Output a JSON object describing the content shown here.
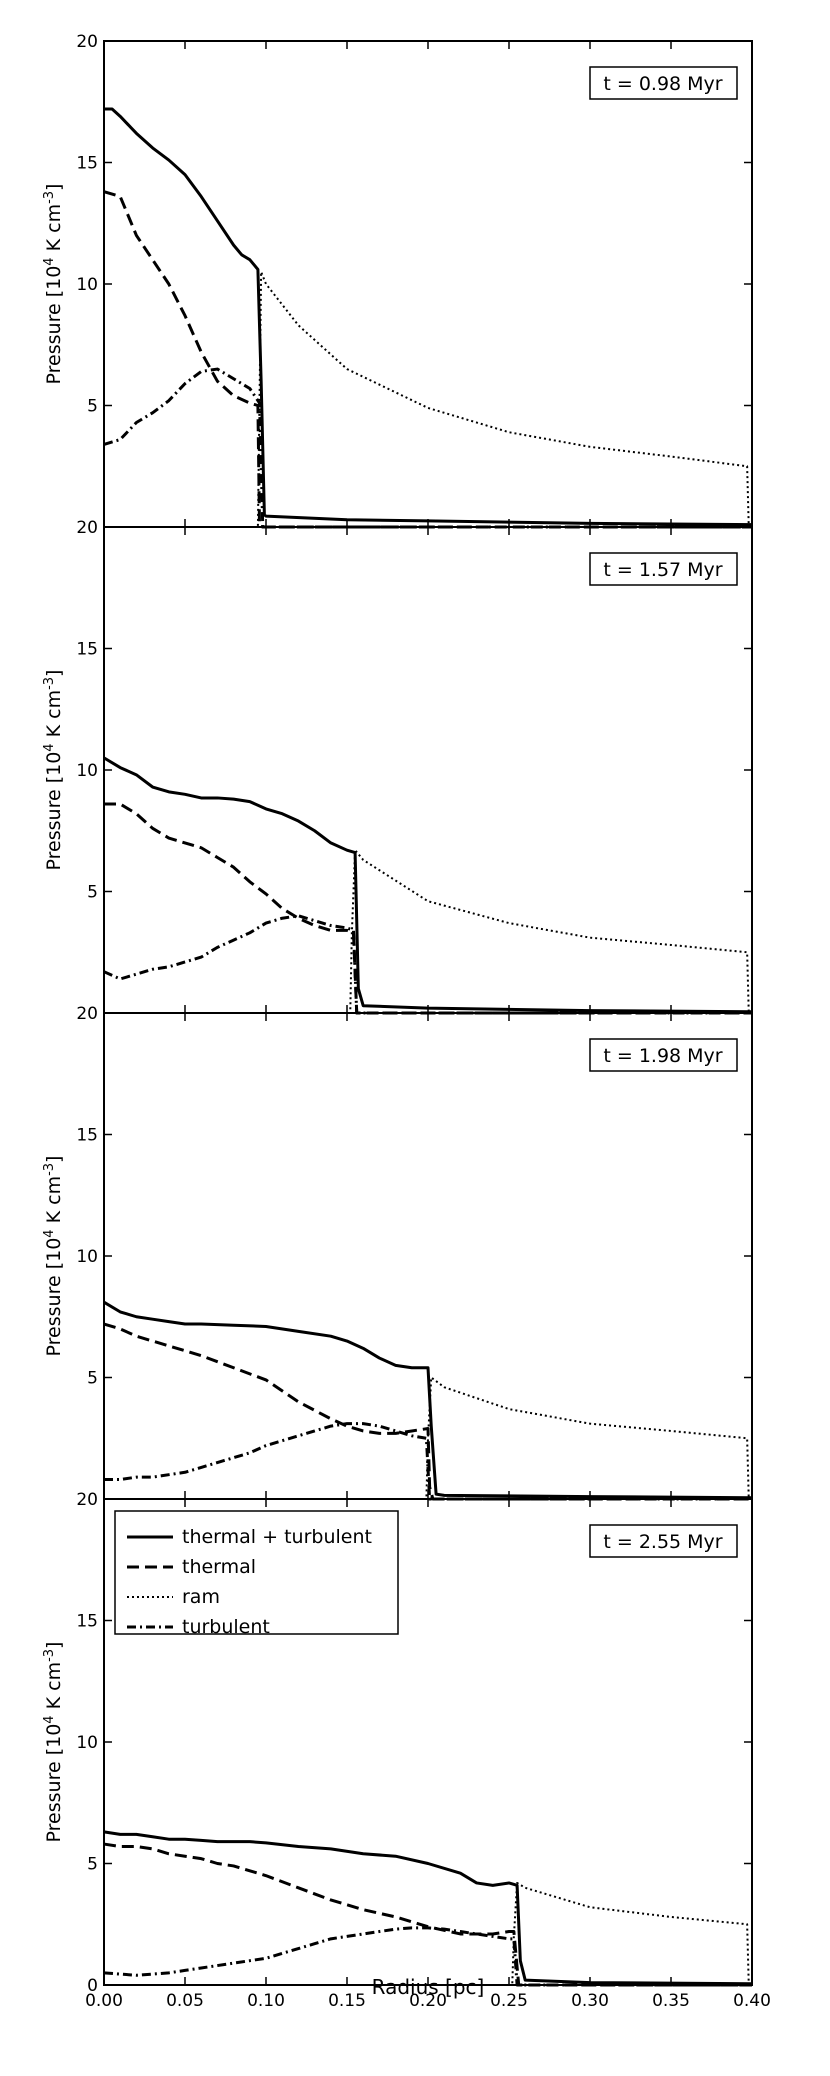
{
  "figure": {
    "xlabel": "Radius [pc]",
    "ylabel_prefix": "Pressure [10",
    "ylabel_exp1": "4",
    "ylabel_mid": " K cm",
    "ylabel_exp2": "-3",
    "ylabel_suffix": "]",
    "legend": [
      {
        "label": "thermal + turbulent",
        "style": "solid"
      },
      {
        "label": "thermal",
        "style": "dashed"
      },
      {
        "label": "ram",
        "style": "dotted"
      },
      {
        "label": "turbulent",
        "style": "dashdot"
      }
    ],
    "legend_placement": "upper-left of bottom panel",
    "line_color": "#000000"
  },
  "chart_data": [
    {
      "type": "line",
      "time_label": "t = 0.98 Myr",
      "xlim": [
        0,
        0.4
      ],
      "ylim": [
        0,
        20
      ],
      "xticks": [
        "0.00",
        "0.05",
        "0.10",
        "0.15",
        "0.20",
        "0.25",
        "0.30",
        "0.35",
        "0.40"
      ],
      "yticks": [
        "",
        "5",
        "10",
        "15",
        "20"
      ],
      "series": [
        {
          "name": "thermal + turbulent",
          "style": "solid",
          "x": [
            0,
            0.005,
            0.01,
            0.02,
            0.03,
            0.04,
            0.05,
            0.06,
            0.07,
            0.08,
            0.085,
            0.09,
            0.095,
            0.097,
            0.099,
            0.1,
            0.15,
            0.2,
            0.3,
            0.4
          ],
          "y": [
            17.2,
            17.2,
            16.9,
            16.2,
            15.6,
            15.1,
            14.5,
            13.6,
            12.6,
            11.6,
            11.2,
            11.0,
            10.6,
            6.0,
            0.5,
            0.45,
            0.3,
            0.25,
            0.15,
            0.1
          ]
        },
        {
          "name": "thermal",
          "style": "dashed",
          "x": [
            0,
            0.01,
            0.02,
            0.03,
            0.04,
            0.05,
            0.06,
            0.07,
            0.08,
            0.09,
            0.095,
            0.096,
            0.098,
            0.4
          ],
          "y": [
            13.8,
            13.6,
            12.0,
            11.0,
            10.0,
            8.7,
            7.2,
            6.0,
            5.4,
            5.1,
            5.0,
            0.05,
            0.0,
            0.0
          ]
        },
        {
          "name": "ram",
          "style": "dotted",
          "x": [
            0,
            0.095,
            0.096,
            0.097,
            0.1,
            0.12,
            0.15,
            0.2,
            0.25,
            0.3,
            0.35,
            0.397,
            0.398,
            0.4
          ],
          "y": [
            0,
            0,
            5.2,
            10.5,
            10.0,
            8.3,
            6.5,
            4.9,
            3.9,
            3.3,
            2.9,
            2.5,
            0,
            0
          ]
        },
        {
          "name": "turbulent",
          "style": "dashdot",
          "x": [
            0,
            0.01,
            0.02,
            0.03,
            0.04,
            0.05,
            0.06,
            0.07,
            0.08,
            0.09,
            0.096,
            0.098,
            0.4
          ],
          "y": [
            3.4,
            3.6,
            4.3,
            4.7,
            5.2,
            5.9,
            6.4,
            6.5,
            6.1,
            5.7,
            5.1,
            0.0,
            0.0
          ]
        }
      ]
    },
    {
      "type": "line",
      "time_label": "t = 1.57 Myr",
      "xlim": [
        0,
        0.4
      ],
      "ylim": [
        0,
        20
      ],
      "xticks": [
        "0.00",
        "0.05",
        "0.10",
        "0.15",
        "0.20",
        "0.25",
        "0.30",
        "0.35",
        "0.40"
      ],
      "yticks": [
        "",
        "5",
        "10",
        "15",
        "20"
      ],
      "series": [
        {
          "name": "thermal + turbulent",
          "style": "solid",
          "x": [
            0,
            0.01,
            0.02,
            0.03,
            0.04,
            0.05,
            0.06,
            0.07,
            0.08,
            0.09,
            0.1,
            0.11,
            0.12,
            0.13,
            0.14,
            0.15,
            0.155,
            0.157,
            0.16,
            0.2,
            0.3,
            0.4
          ],
          "y": [
            10.5,
            10.1,
            9.8,
            9.3,
            9.1,
            9.0,
            8.85,
            8.85,
            8.8,
            8.7,
            8.4,
            8.2,
            7.9,
            7.5,
            7.0,
            6.7,
            6.6,
            1.0,
            0.3,
            0.2,
            0.1,
            0.05
          ]
        },
        {
          "name": "thermal",
          "style": "dashed",
          "x": [
            0,
            0.01,
            0.02,
            0.03,
            0.04,
            0.05,
            0.06,
            0.07,
            0.08,
            0.09,
            0.1,
            0.11,
            0.12,
            0.13,
            0.14,
            0.15,
            0.154,
            0.156,
            0.4
          ],
          "y": [
            8.6,
            8.6,
            8.2,
            7.6,
            7.2,
            7.0,
            6.8,
            6.4,
            6.0,
            5.4,
            4.9,
            4.3,
            3.9,
            3.6,
            3.4,
            3.4,
            3.3,
            0.0,
            0.0
          ]
        },
        {
          "name": "ram",
          "style": "dotted",
          "x": [
            0,
            0.152,
            0.153,
            0.155,
            0.16,
            0.2,
            0.25,
            0.3,
            0.35,
            0.397,
            0.398,
            0.4
          ],
          "y": [
            0,
            0,
            3.3,
            6.7,
            6.3,
            4.6,
            3.7,
            3.1,
            2.8,
            2.5,
            0,
            0
          ]
        },
        {
          "name": "turbulent",
          "style": "dashdot",
          "x": [
            0,
            0.01,
            0.02,
            0.03,
            0.04,
            0.05,
            0.06,
            0.07,
            0.08,
            0.09,
            0.1,
            0.11,
            0.12,
            0.13,
            0.14,
            0.15,
            0.154,
            0.156,
            0.4
          ],
          "y": [
            1.7,
            1.4,
            1.6,
            1.8,
            1.9,
            2.1,
            2.3,
            2.7,
            3.0,
            3.3,
            3.7,
            3.9,
            4.0,
            3.8,
            3.6,
            3.5,
            3.4,
            0.0,
            0.0
          ]
        }
      ]
    },
    {
      "type": "line",
      "time_label": "t = 1.98 Myr",
      "xlim": [
        0,
        0.4
      ],
      "ylim": [
        0,
        20
      ],
      "xticks": [
        "0.00",
        "0.05",
        "0.10",
        "0.15",
        "0.20",
        "0.25",
        "0.30",
        "0.35",
        "0.40"
      ],
      "yticks": [
        "",
        "5",
        "10",
        "15",
        "20"
      ],
      "series": [
        {
          "name": "thermal + turbulent",
          "style": "solid",
          "x": [
            0,
            0.01,
            0.02,
            0.03,
            0.04,
            0.05,
            0.06,
            0.08,
            0.1,
            0.12,
            0.14,
            0.15,
            0.16,
            0.17,
            0.18,
            0.19,
            0.2,
            0.202,
            0.205,
            0.21,
            0.3,
            0.4
          ],
          "y": [
            8.1,
            7.7,
            7.5,
            7.4,
            7.3,
            7.2,
            7.2,
            7.15,
            7.1,
            6.9,
            6.7,
            6.5,
            6.2,
            5.8,
            5.5,
            5.4,
            5.4,
            3.0,
            0.2,
            0.15,
            0.1,
            0.05
          ]
        },
        {
          "name": "thermal",
          "style": "dashed",
          "x": [
            0,
            0.01,
            0.02,
            0.03,
            0.04,
            0.05,
            0.06,
            0.08,
            0.1,
            0.12,
            0.14,
            0.15,
            0.16,
            0.17,
            0.18,
            0.19,
            0.2,
            0.201,
            0.203,
            0.4
          ],
          "y": [
            7.2,
            7.0,
            6.7,
            6.5,
            6.3,
            6.1,
            5.9,
            5.4,
            4.9,
            4.0,
            3.3,
            3.0,
            2.8,
            2.7,
            2.7,
            2.8,
            2.9,
            0.5,
            0.0,
            0.0
          ]
        },
        {
          "name": "ram",
          "style": "dotted",
          "x": [
            0,
            0.199,
            0.2,
            0.202,
            0.21,
            0.25,
            0.3,
            0.35,
            0.397,
            0.398,
            0.4
          ],
          "y": [
            0,
            0,
            2.5,
            5.0,
            4.6,
            3.7,
            3.1,
            2.8,
            2.5,
            0,
            0
          ]
        },
        {
          "name": "turbulent",
          "style": "dashdot",
          "x": [
            0,
            0.01,
            0.02,
            0.03,
            0.04,
            0.05,
            0.06,
            0.07,
            0.08,
            0.09,
            0.1,
            0.11,
            0.12,
            0.13,
            0.14,
            0.15,
            0.16,
            0.17,
            0.18,
            0.19,
            0.199,
            0.201,
            0.4
          ],
          "y": [
            0.8,
            0.8,
            0.9,
            0.9,
            1.0,
            1.1,
            1.3,
            1.5,
            1.7,
            1.9,
            2.2,
            2.4,
            2.6,
            2.8,
            3.0,
            3.1,
            3.1,
            3.0,
            2.8,
            2.6,
            2.5,
            0.0,
            0.0
          ]
        }
      ]
    },
    {
      "type": "line",
      "time_label": "t = 2.55 Myr",
      "xlim": [
        0,
        0.4
      ],
      "ylim": [
        0,
        20
      ],
      "xticks": [
        "0.00",
        "0.05",
        "0.10",
        "0.15",
        "0.20",
        "0.25",
        "0.30",
        "0.35",
        "0.40"
      ],
      "yticks": [
        "0",
        "5",
        "10",
        "15",
        "20"
      ],
      "series": [
        {
          "name": "thermal + turbulent",
          "style": "solid",
          "x": [
            0,
            0.01,
            0.02,
            0.03,
            0.04,
            0.05,
            0.06,
            0.07,
            0.08,
            0.09,
            0.1,
            0.12,
            0.14,
            0.16,
            0.18,
            0.2,
            0.22,
            0.23,
            0.24,
            0.25,
            0.255,
            0.257,
            0.26,
            0.3,
            0.4
          ],
          "y": [
            6.3,
            6.2,
            6.2,
            6.1,
            6.0,
            6.0,
            5.95,
            5.9,
            5.9,
            5.9,
            5.85,
            5.7,
            5.6,
            5.4,
            5.3,
            5.0,
            4.6,
            4.2,
            4.1,
            4.2,
            4.1,
            1.0,
            0.2,
            0.1,
            0.05
          ]
        },
        {
          "name": "thermal",
          "style": "dashed",
          "x": [
            0,
            0.01,
            0.02,
            0.03,
            0.04,
            0.05,
            0.06,
            0.07,
            0.08,
            0.09,
            0.1,
            0.12,
            0.14,
            0.16,
            0.18,
            0.2,
            0.22,
            0.24,
            0.25,
            0.253,
            0.256,
            0.4
          ],
          "y": [
            5.8,
            5.7,
            5.7,
            5.6,
            5.4,
            5.3,
            5.2,
            5.0,
            4.9,
            4.7,
            4.5,
            4.0,
            3.5,
            3.1,
            2.8,
            2.4,
            2.1,
            2.1,
            2.2,
            2.2,
            0.0,
            0.0
          ]
        },
        {
          "name": "ram",
          "style": "dotted",
          "x": [
            0,
            0.252,
            0.253,
            0.255,
            0.26,
            0.3,
            0.35,
            0.397,
            0.398,
            0.4
          ],
          "y": [
            0,
            0,
            2.0,
            4.2,
            4.0,
            3.2,
            2.8,
            2.5,
            0,
            0
          ]
        },
        {
          "name": "turbulent",
          "style": "dashdot",
          "x": [
            0,
            0.01,
            0.02,
            0.03,
            0.04,
            0.05,
            0.06,
            0.07,
            0.08,
            0.09,
            0.1,
            0.11,
            0.12,
            0.13,
            0.14,
            0.15,
            0.16,
            0.17,
            0.18,
            0.19,
            0.2,
            0.21,
            0.22,
            0.23,
            0.24,
            0.25,
            0.253,
            0.255,
            0.4
          ],
          "y": [
            0.5,
            0.45,
            0.4,
            0.45,
            0.5,
            0.6,
            0.7,
            0.8,
            0.9,
            1.0,
            1.1,
            1.3,
            1.5,
            1.7,
            1.9,
            2.0,
            2.1,
            2.2,
            2.3,
            2.35,
            2.35,
            2.3,
            2.2,
            2.1,
            2.0,
            1.9,
            1.9,
            0.0,
            0.0
          ]
        }
      ]
    }
  ]
}
